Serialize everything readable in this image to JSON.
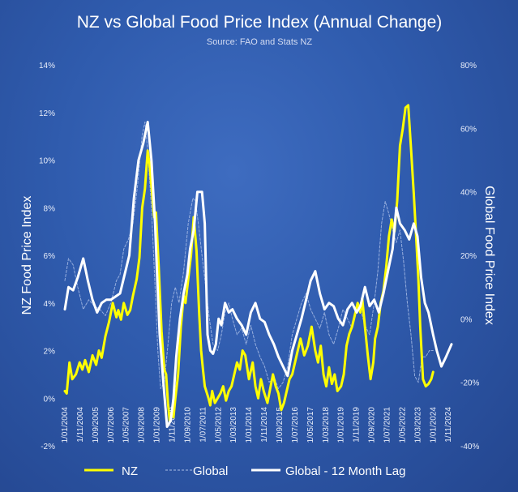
{
  "chart_data": {
    "type": "line",
    "title": "NZ vs Global Food Price Index (Annual Change)",
    "subtitle": "Source: FAO and Stats NZ",
    "ylabel_left": "NZ Food Price Index",
    "ylabel_right": "Global Food Price Index",
    "ylim_left": [
      -2,
      14
    ],
    "ylim_right": [
      -40,
      80
    ],
    "left_ticks": [
      "-2%",
      "0%",
      "2%",
      "4%",
      "6%",
      "8%",
      "10%",
      "12%",
      "14%"
    ],
    "right_ticks": [
      "-40%",
      "-20%",
      "0%",
      "20%",
      "40%",
      "60%",
      "80%"
    ],
    "x_tick_labels": [
      "1/01/2004",
      "1/11/2004",
      "1/09/2005",
      "1/07/2006",
      "1/05/2007",
      "1/03/2008",
      "1/01/2009",
      "1/11/2009",
      "1/09/2010",
      "1/07/2011",
      "1/05/2012",
      "1/03/2013",
      "1/01/2014",
      "1/11/2014",
      "1/09/2015",
      "1/07/2016",
      "1/05/2017",
      "1/03/2018",
      "1/01/2019",
      "1/11/2019",
      "1/09/2020",
      "1/07/2021",
      "1/05/2022",
      "1/03/2023",
      "1/01/2024",
      "1/11/2024"
    ],
    "x_range": [
      2004.0,
      2025.0
    ],
    "grid": false,
    "legend_position": "bottom",
    "colors": {
      "nz": "#ffff00",
      "global": "#a9bde6",
      "lag": "#ffffff"
    },
    "series": [
      {
        "name": "NZ",
        "axis": "left",
        "style": "solid",
        "x": [
          2004.0,
          2004.1,
          2004.25,
          2004.4,
          2004.6,
          2004.8,
          2004.95,
          2005.1,
          2005.3,
          2005.5,
          2005.7,
          2005.85,
          2006.0,
          2006.2,
          2006.4,
          2006.6,
          2006.8,
          2006.9,
          2007.05,
          2007.2,
          2007.4,
          2007.55,
          2007.7,
          2007.9,
          2008.05,
          2008.2,
          2008.35,
          2008.5,
          2008.6,
          2008.75,
          2008.85,
          2008.95,
          2009.1,
          2009.25,
          2009.4,
          2009.5,
          2009.6,
          2009.7,
          2009.8,
          2009.9,
          2010.0,
          2010.15,
          2010.3,
          2010.45,
          2010.55,
          2010.7,
          2010.85,
          2011.0,
          2011.15,
          2011.3,
          2011.4,
          2011.5,
          2011.6,
          2011.8,
          2011.9,
          2012.0,
          2012.15,
          2012.3,
          2012.45,
          2012.6,
          2012.75,
          2012.9,
          2013.05,
          2013.2,
          2013.35,
          2013.5,
          2013.65,
          2013.8,
          2014.0,
          2014.2,
          2014.35,
          2014.5,
          2014.65,
          2014.8,
          2015.0,
          2015.15,
          2015.3,
          2015.45,
          2015.6,
          2015.75,
          2015.9,
          2016.05,
          2016.2,
          2016.35,
          2016.5,
          2016.65,
          2016.8,
          2017.0,
          2017.2,
          2017.4,
          2017.6,
          2017.75,
          2017.9,
          2018.05,
          2018.2,
          2018.35,
          2018.5,
          2018.65,
          2018.8,
          2019.0,
          2019.15,
          2019.3,
          2019.45,
          2019.6,
          2019.75,
          2019.9,
          2020.05,
          2020.15,
          2020.3,
          2020.45,
          2020.6,
          2020.75,
          2020.85,
          2021.0,
          2021.15,
          2021.3,
          2021.45,
          2021.6,
          2021.75,
          2021.9,
          2022.05,
          2022.2,
          2022.35,
          2022.5,
          2022.65,
          2022.8,
          2022.95,
          2023.1,
          2023.2,
          2023.3,
          2023.45,
          2023.6,
          2023.75,
          2023.9,
          2024.0
        ],
        "y": [
          0.3,
          0.2,
          1.5,
          0.8,
          1.0,
          1.5,
          1.2,
          1.6,
          1.1,
          1.8,
          1.4,
          2.0,
          1.7,
          2.6,
          3.2,
          4.0,
          3.4,
          3.7,
          3.3,
          4.0,
          3.5,
          3.7,
          4.3,
          5.0,
          5.9,
          8.0,
          8.8,
          10.4,
          9.8,
          8.5,
          7.6,
          7.8,
          5.5,
          2.8,
          1.2,
          1.0,
          -0.2,
          -1.0,
          -0.6,
          -0.8,
          0.0,
          1.0,
          3.0,
          4.3,
          4.0,
          5.0,
          6.0,
          7.6,
          6.2,
          3.5,
          2.0,
          1.2,
          0.5,
          0.0,
          -0.3,
          0.3,
          -0.2,
          0.0,
          0.2,
          0.5,
          -0.1,
          0.3,
          0.5,
          1.0,
          1.5,
          1.2,
          2.0,
          1.8,
          0.8,
          1.5,
          0.5,
          0.0,
          0.8,
          0.3,
          -0.2,
          0.4,
          1.0,
          0.5,
          0.2,
          -0.5,
          -0.2,
          0.3,
          0.8,
          1.0,
          1.5,
          2.0,
          2.5,
          1.8,
          2.2,
          3.0,
          2.0,
          1.5,
          2.2,
          1.0,
          0.5,
          1.3,
          0.6,
          1.0,
          0.3,
          0.5,
          1.0,
          2.2,
          2.7,
          3.0,
          3.5,
          4.0,
          3.6,
          4.2,
          3.0,
          1.8,
          0.8,
          1.5,
          2.5,
          3.0,
          4.0,
          4.5,
          5.5,
          6.8,
          7.5,
          7.0,
          8.3,
          10.6,
          11.3,
          12.2,
          12.3,
          10.5,
          8.6,
          6.5,
          5.0,
          3.0,
          0.8,
          0.5,
          0.6,
          0.8,
          1.1
        ]
      },
      {
        "name": "Global",
        "axis": "right",
        "style": "dashed",
        "x": [
          2004.0,
          2004.2,
          2004.45,
          2004.7,
          2005.0,
          2005.3,
          2005.6,
          2005.9,
          2006.2,
          2006.5,
          2006.8,
          2007.0,
          2007.2,
          2007.45,
          2007.7,
          2007.95,
          2008.2,
          2008.35,
          2008.5,
          2008.7,
          2008.9,
          2009.05,
          2009.2,
          2009.4,
          2009.6,
          2009.8,
          2010.0,
          2010.2,
          2010.45,
          2010.7,
          2010.95,
          2011.1,
          2011.25,
          2011.45,
          2011.65,
          2011.85,
          2012.05,
          2012.3,
          2012.5,
          2012.7,
          2012.9,
          2013.1,
          2013.35,
          2013.6,
          2013.85,
          2014.1,
          2014.35,
          2014.6,
          2014.85,
          2015.1,
          2015.35,
          2015.6,
          2015.85,
          2016.1,
          2016.35,
          2016.6,
          2016.85,
          2017.1,
          2017.35,
          2017.6,
          2017.85,
          2018.1,
          2018.35,
          2018.6,
          2018.85,
          2019.1,
          2019.35,
          2019.6,
          2019.85,
          2020.05,
          2020.3,
          2020.55,
          2020.8,
          2021.0,
          2021.2,
          2021.4,
          2021.6,
          2021.8,
          2022.0,
          2022.2,
          2022.4,
          2022.6,
          2022.8,
          2023.0,
          2023.2,
          2023.4,
          2023.6,
          2023.8,
          2024.0
        ],
        "y": [
          12,
          19,
          17,
          10,
          3,
          6,
          4,
          3,
          1,
          5,
          12,
          14,
          22,
          25,
          30,
          42,
          58,
          62,
          53,
          35,
          10,
          -10,
          -22,
          -20,
          -8,
          5,
          10,
          5,
          15,
          30,
          38,
          37,
          30,
          20,
          10,
          0,
          -8,
          -10,
          -5,
          2,
          5,
          0,
          -5,
          -3,
          -8,
          -2,
          -8,
          -12,
          -15,
          -20,
          -18,
          -22,
          -20,
          -15,
          -5,
          0,
          5,
          8,
          3,
          0,
          -3,
          2,
          -5,
          -8,
          -3,
          3,
          0,
          -3,
          4,
          3,
          -2,
          -5,
          5,
          15,
          30,
          37,
          33,
          28,
          24,
          28,
          18,
          5,
          -5,
          -18,
          -20,
          -12,
          -12,
          -10,
          -10
        ]
      },
      {
        "name": "Global - 12 Month Lag",
        "axis": "right",
        "style": "solid",
        "x": [
          2004.0,
          2004.2,
          2004.45,
          2004.7,
          2005.0,
          2005.25,
          2005.5,
          2005.75,
          2006.0,
          2006.25,
          2006.5,
          2006.75,
          2007.0,
          2007.25,
          2007.5,
          2007.75,
          2008.0,
          2008.25,
          2008.5,
          2008.7,
          2008.9,
          2009.0,
          2009.15,
          2009.35,
          2009.55,
          2009.75,
          2009.9,
          2010.05,
          2010.25,
          2010.45,
          2010.65,
          2010.8,
          2011.0,
          2011.2,
          2011.45,
          2011.6,
          2011.75,
          2011.9,
          2012.05,
          2012.2,
          2012.35,
          2012.5,
          2012.7,
          2012.9,
          2013.1,
          2013.35,
          2013.6,
          2013.85,
          2014.1,
          2014.35,
          2014.6,
          2014.85,
          2015.1,
          2015.35,
          2015.6,
          2015.85,
          2016.1,
          2016.35,
          2016.6,
          2016.85,
          2017.1,
          2017.35,
          2017.6,
          2017.85,
          2018.1,
          2018.35,
          2018.6,
          2018.85,
          2019.1,
          2019.35,
          2019.6,
          2019.85,
          2020.05,
          2020.3,
          2020.55,
          2020.8,
          2021.05,
          2021.3,
          2021.55,
          2021.8,
          2022.0,
          2022.2,
          2022.45,
          2022.7,
          2022.95,
          2023.15,
          2023.35,
          2023.55,
          2023.75,
          2024.0,
          2024.2,
          2024.45,
          2024.7,
          2025.0
        ],
        "y": [
          3,
          10,
          9,
          13,
          19,
          12,
          6,
          2,
          5,
          6,
          6,
          7,
          8,
          14,
          20,
          38,
          50,
          55,
          62,
          50,
          30,
          15,
          -5,
          -20,
          -34,
          -32,
          -25,
          -12,
          0,
          8,
          14,
          22,
          28,
          40,
          40,
          30,
          -5,
          -10,
          -11,
          -8,
          0,
          -2,
          5,
          2,
          3,
          0,
          -2,
          -5,
          2,
          5,
          0,
          -1,
          -5,
          -8,
          -12,
          -15,
          -18,
          -10,
          -5,
          0,
          6,
          12,
          15,
          8,
          3,
          5,
          4,
          0,
          -2,
          3,
          5,
          2,
          4,
          10,
          4,
          6,
          2,
          8,
          15,
          22,
          35,
          30,
          28,
          25,
          30,
          26,
          13,
          5,
          2,
          -5,
          -10,
          -15,
          -12,
          -8
        ]
      }
    ]
  }
}
